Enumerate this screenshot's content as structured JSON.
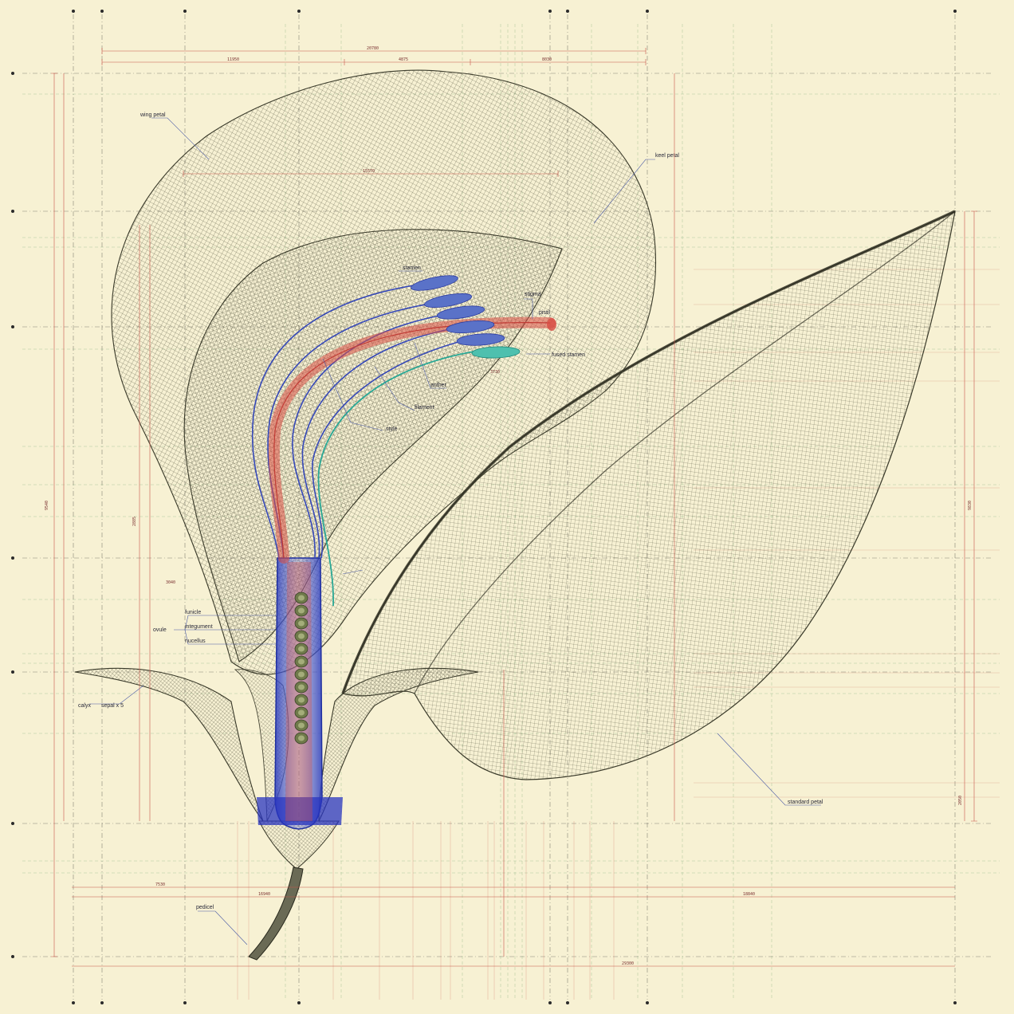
{
  "labels": {
    "wing_petal": "wing petal",
    "keel_petal": "keel petal",
    "standard_petal": "standard petal",
    "pedicel": "pedicel",
    "calyx": "calyx",
    "sepal": "sepal x 5",
    "ovule": "ovule",
    "funicle": "funicle",
    "integument": "integument",
    "nucellus": "nucellus",
    "stamen": "stamen",
    "fused_stamen": "fused stamen",
    "pistil": "pistil",
    "style": "style",
    "filament": "filament",
    "anther": "anther",
    "stigma": "stigma"
  },
  "dimensions": {
    "top_overall": "20780",
    "top_left": "11950",
    "top_mid": "4875",
    "top_right": "8030",
    "keel_width": "15570",
    "bottom_left": "7530",
    "bottom_mid": "16940",
    "bottom_right": "18840",
    "bottom_overall": "29300",
    "height_total": "9540",
    "height_left": "2885",
    "pistil_w": "3040",
    "anther_span": "3730",
    "right_height": "9830",
    "right_low": "2050"
  },
  "colors": {
    "paper": "#f7f1d3",
    "mesh": "#4a4a36",
    "grid_red": "#c8574a",
    "grid_green": "#6aa06a",
    "stamen_blue": "#3548b8",
    "pistil_red": "#d84c44",
    "fused_teal": "#2aa895",
    "ovule_green": "#6f7a4a",
    "leader": "#4a5aa6"
  }
}
